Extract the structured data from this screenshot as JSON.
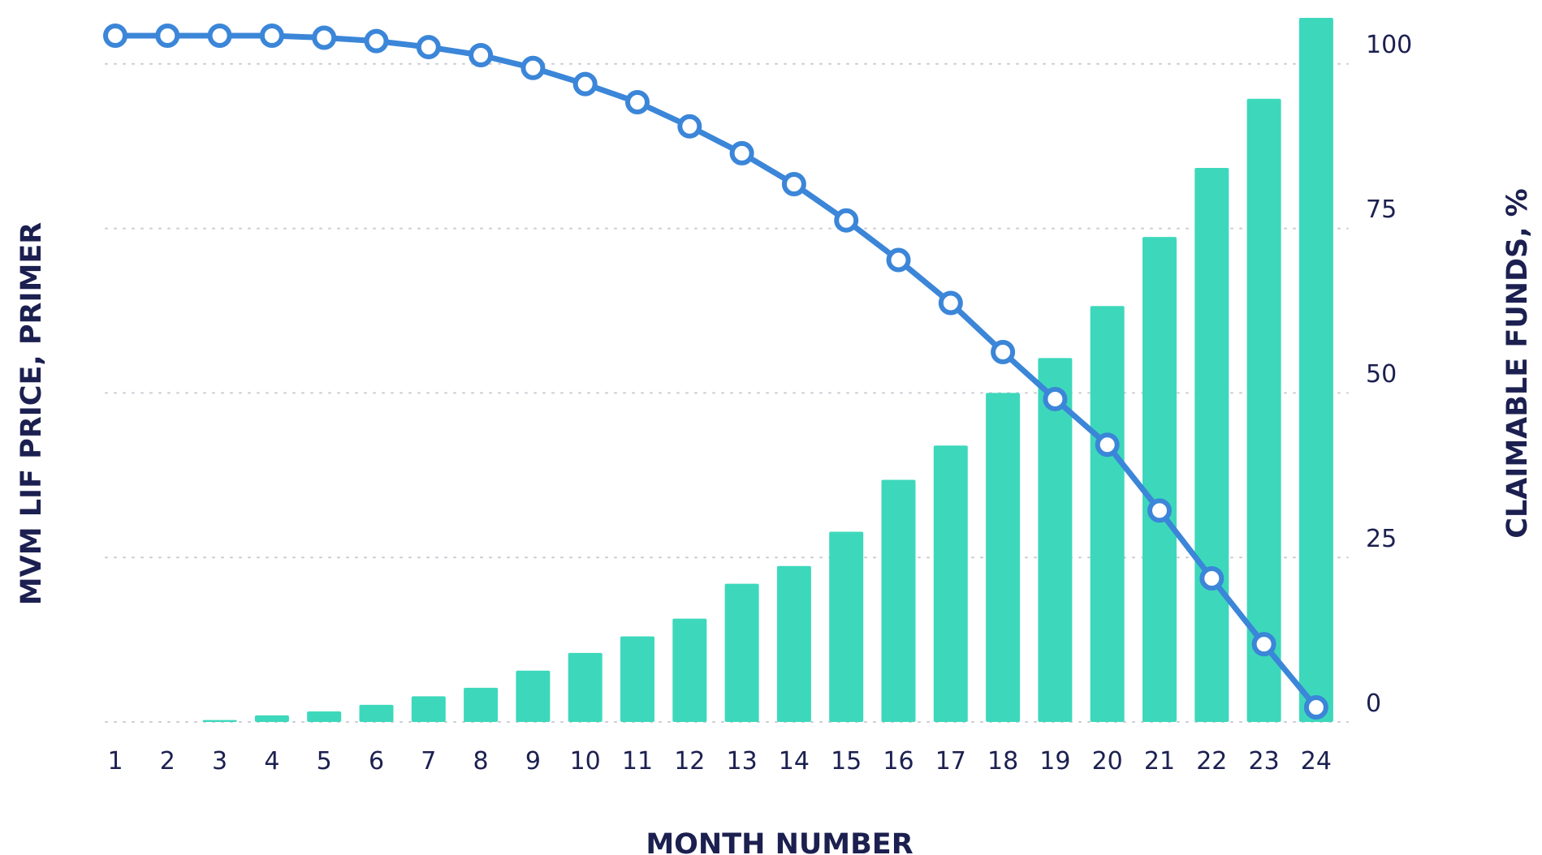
{
  "chart_data": {
    "type": "bar+line",
    "xlabel": "MONTH NUMBER",
    "ylabel_left": "MVM LIF PRICE, PRIMER",
    "ylabel_right": "CLAIMABLE FUNDS, %",
    "categories": [
      "1",
      "2",
      "3",
      "4",
      "5",
      "6",
      "7",
      "8",
      "9",
      "10",
      "11",
      "12",
      "13",
      "14",
      "15",
      "16",
      "17",
      "18",
      "19",
      "20",
      "21",
      "22",
      "23",
      "24"
    ],
    "y_right_ticks": [
      "0",
      "25",
      "50",
      "75",
      "100"
    ],
    "y_right_range": [
      0,
      107
    ],
    "grid": "horizontal-dotted",
    "series": [
      {
        "kind": "bar",
        "axis": "right",
        "color": "#3dd8bb",
        "values": [
          0,
          0,
          0.3,
          1,
          1.6,
          2.6,
          3.9,
          5.2,
          7.8,
          10.5,
          13,
          15.7,
          21,
          23.7,
          28.9,
          36.8,
          42,
          50,
          55.3,
          63.2,
          73.7,
          84.2,
          94.7,
          107
        ]
      },
      {
        "kind": "line",
        "axis": "left",
        "color": "#3b86d8",
        "values": [
          100,
          100,
          100,
          100,
          99.7,
          99.2,
          98.3,
          97.1,
          95.2,
          92.8,
          90.1,
          86.5,
          82.5,
          77.9,
          72.5,
          66.6,
          60.2,
          52.9,
          45.9,
          39.1,
          29.3,
          19.2,
          9.4,
          0
        ]
      }
    ]
  }
}
